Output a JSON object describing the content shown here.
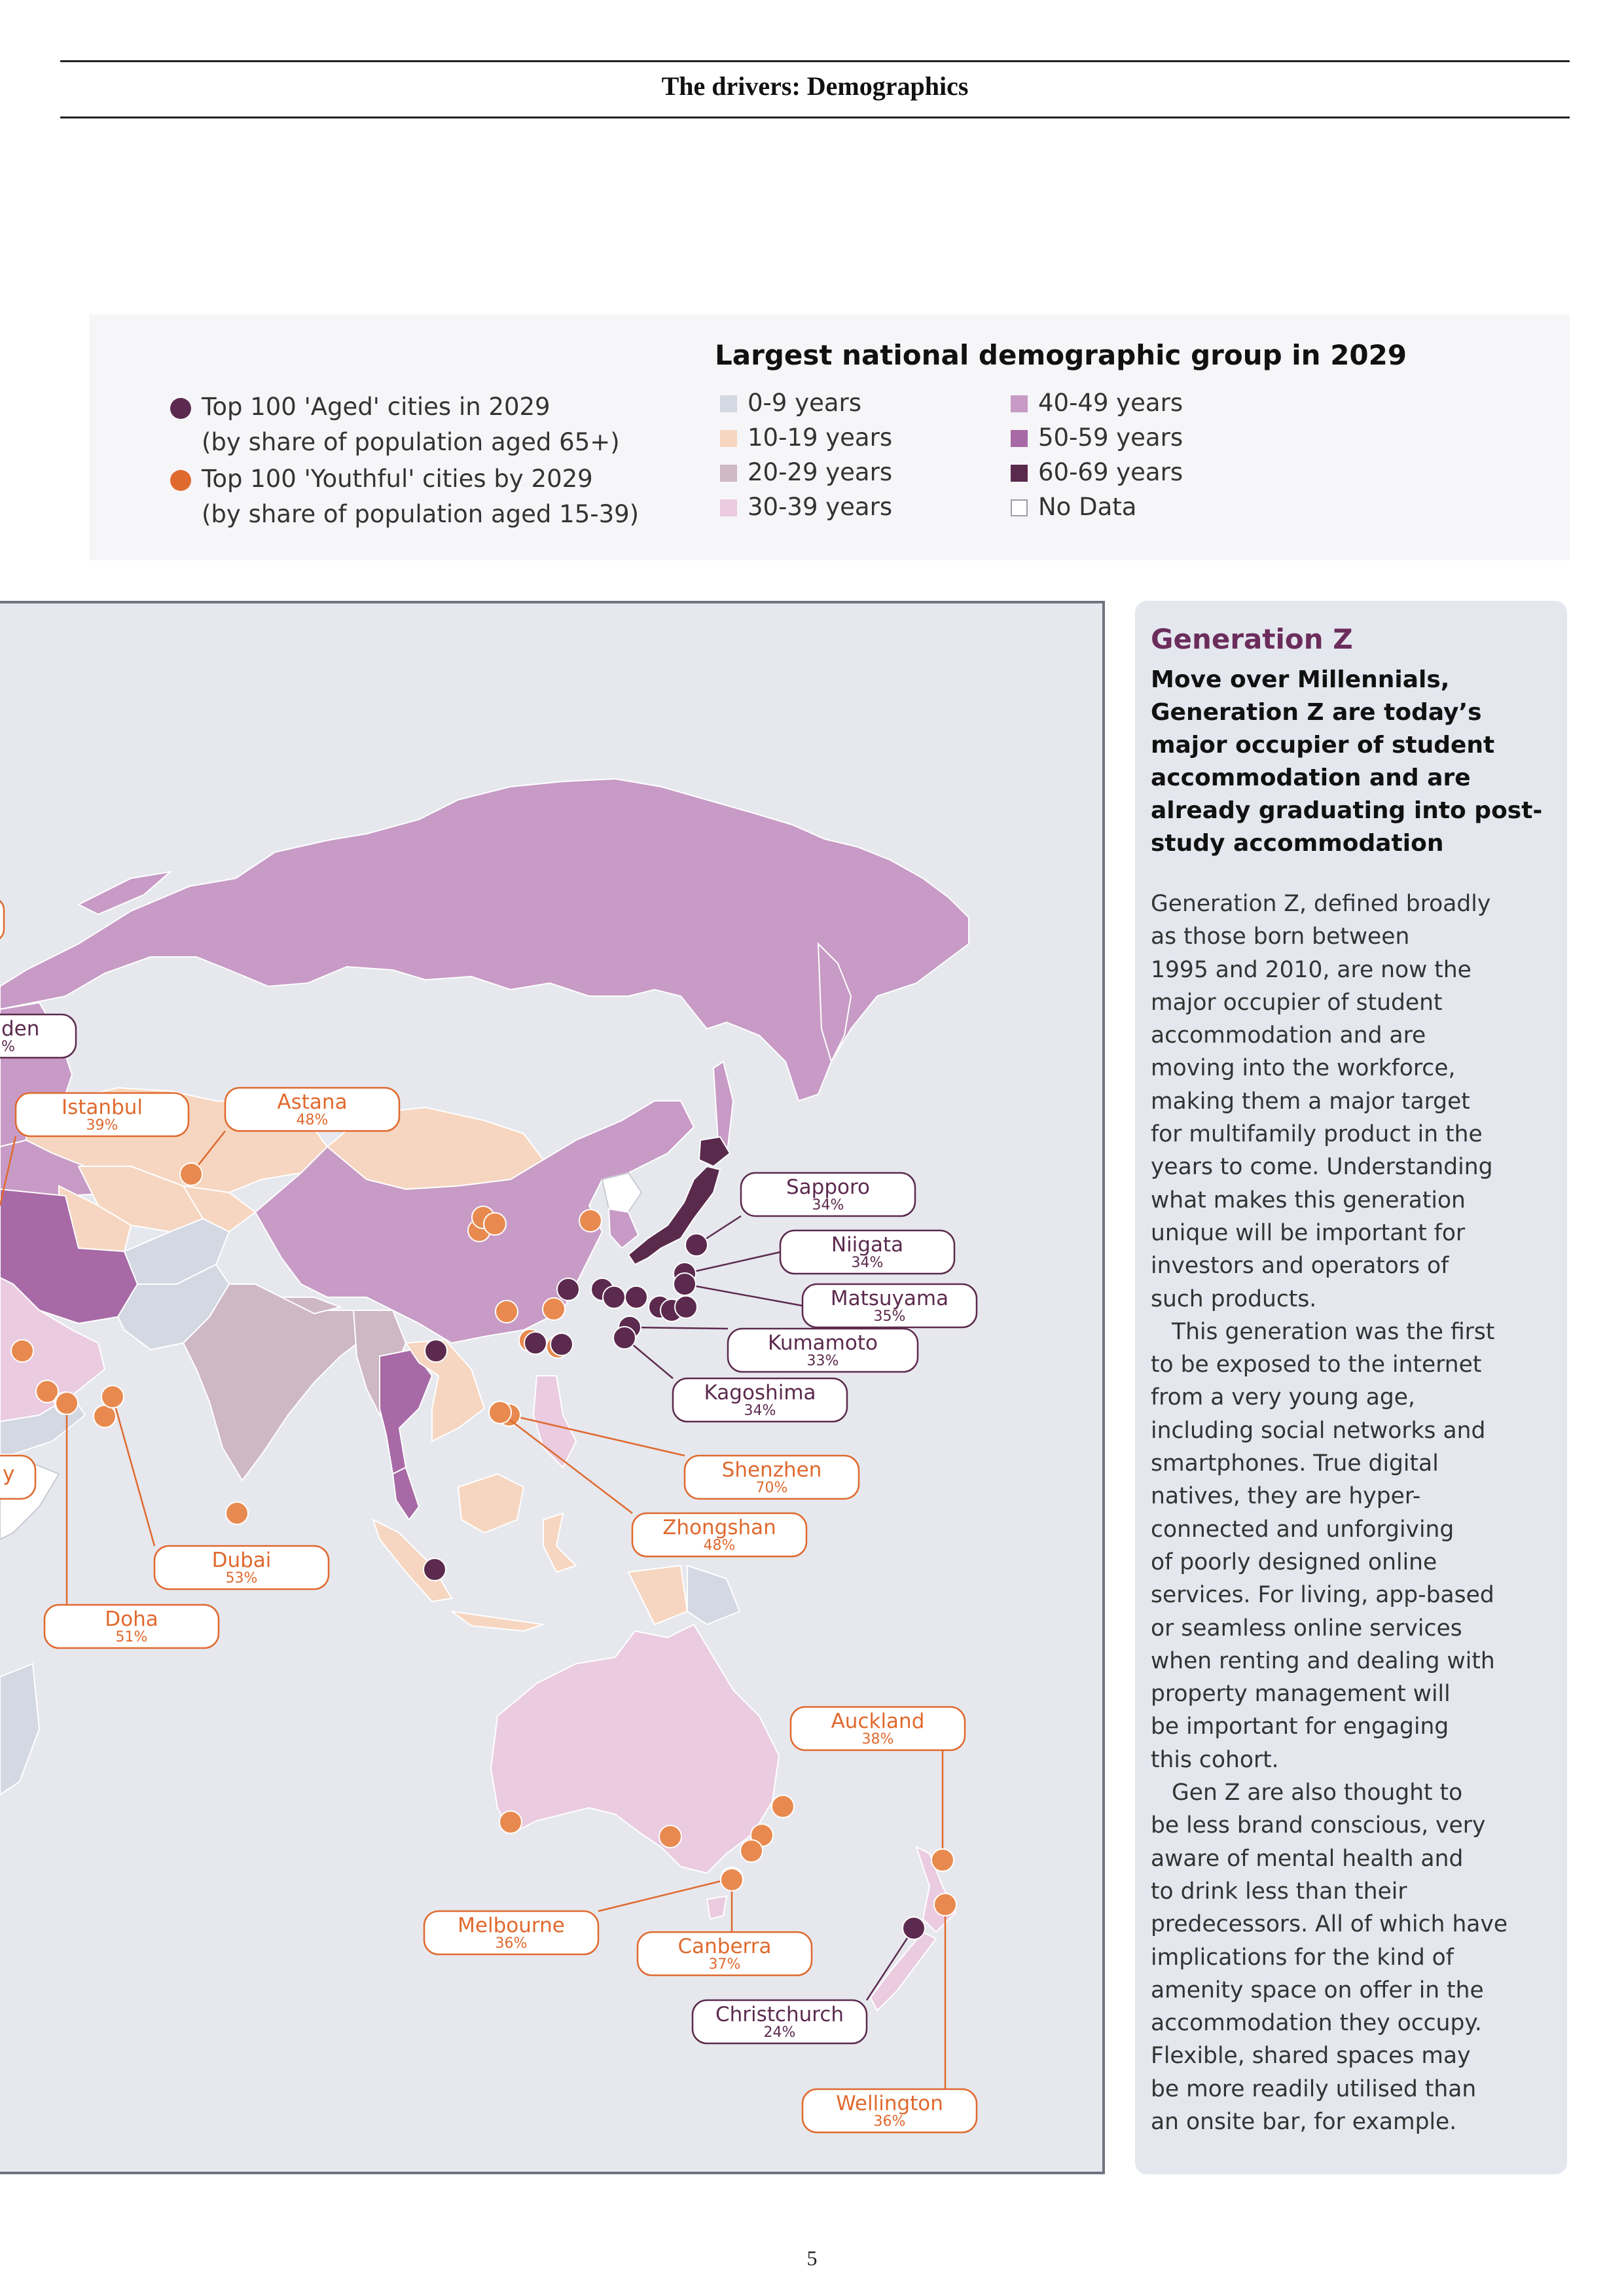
{
  "header": {
    "section_title": "The drivers: Demographics"
  },
  "legend": {
    "heading": "Largest national demographic group in 2029",
    "markers": [
      {
        "color": "#5c2a4e",
        "line1": "Top 100 'Aged' cities in 2029",
        "line2": "(by share of population aged 65+)"
      },
      {
        "color": "#e0692e",
        "line1": "Top 100 'Youthful' cities by 2029",
        "line2": "(by share of population aged 15-39)"
      }
    ],
    "groups": [
      {
        "label": "0-9 years",
        "color": "#d4d8e3"
      },
      {
        "label": "10-19 years",
        "color": "#f6d6c0"
      },
      {
        "label": "20-29 years",
        "color": "#cdb8c4"
      },
      {
        "label": "30-39 years",
        "color": "#eacbe0"
      },
      {
        "label": "40-49 years",
        "color": "#c79bc5"
      },
      {
        "label": "50-59 years",
        "color": "#a76aa6"
      },
      {
        "label": "60-69 years",
        "color": "#5a2a4c"
      },
      {
        "label": "No Data",
        "color": "#ffffff"
      }
    ]
  },
  "map": {
    "aged_color": "#5c2a4e",
    "youthful_color": "#e0692e",
    "cities": [
      {
        "name": "Istanbul",
        "pct": "39%",
        "type": "youthful"
      },
      {
        "name": "Astana",
        "pct": "48%",
        "type": "youthful"
      },
      {
        "name": "Sapporo",
        "pct": "34%",
        "type": "aged"
      },
      {
        "name": "Niigata",
        "pct": "34%",
        "type": "aged"
      },
      {
        "name": "Matsuyama",
        "pct": "35%",
        "type": "aged"
      },
      {
        "name": "Kumamoto",
        "pct": "33%",
        "type": "aged"
      },
      {
        "name": "Kagoshima",
        "pct": "34%",
        "type": "aged"
      },
      {
        "name": "Shenzhen",
        "pct": "70%",
        "type": "youthful"
      },
      {
        "name": "Zhongshan",
        "pct": "48%",
        "type": "youthful"
      },
      {
        "name": "Dubai",
        "pct": "53%",
        "type": "youthful"
      },
      {
        "name": "Doha",
        "pct": "51%",
        "type": "youthful"
      },
      {
        "name": "Auckland",
        "pct": "38%",
        "type": "youthful"
      },
      {
        "name": "Melbourne",
        "pct": "36%",
        "type": "youthful"
      },
      {
        "name": "Canberra",
        "pct": "37%",
        "type": "youthful"
      },
      {
        "name": "Christchurch",
        "pct": "24%",
        "type": "aged"
      },
      {
        "name": "Wellington",
        "pct": "36%",
        "type": "youthful"
      }
    ],
    "partial_labels": [
      {
        "text": "den",
        "pct": "%",
        "type": "aged"
      },
      {
        "text": "y",
        "type": "youthful"
      }
    ]
  },
  "sidebar": {
    "title": "Generation Z",
    "lead": "Move over Millennials, Generation Z are today’s major occupier of student accommodation and are already graduating into post-study accommodation",
    "body_lines": [
      "Generation Z, defined broadly",
      "as those born between",
      "1995 and 2010, are now the",
      "major occupier of student",
      "accommodation and are",
      "moving into the workforce,",
      "making them a major target",
      "for multifamily product in the",
      "years to come. Understanding",
      "what makes this generation",
      "unique will be important for",
      "investors and operators of",
      "such products.",
      "This generation was the first",
      "to be exposed to the internet",
      "from a very young age,",
      "including social networks and",
      "smartphones. True digital",
      "natives, they are hyper-",
      "connected and unforgiving",
      "of poorly designed online",
      "services. For living, app-based",
      "or seamless online services",
      "when renting and dealing with",
      "property management will",
      "be important for engaging",
      "this cohort.",
      "Gen Z are also thought to",
      "be less brand conscious, very",
      "aware of mental health and",
      "to drink less than their",
      "predecessors. All of which have",
      "implications for the kind of",
      "amenity space on offer in the",
      "accommodation they occupy.",
      "Flexible, shared spaces may",
      "be more readily utilised than",
      "an onsite bar, for example."
    ]
  },
  "footer": {
    "page_number": "5"
  }
}
